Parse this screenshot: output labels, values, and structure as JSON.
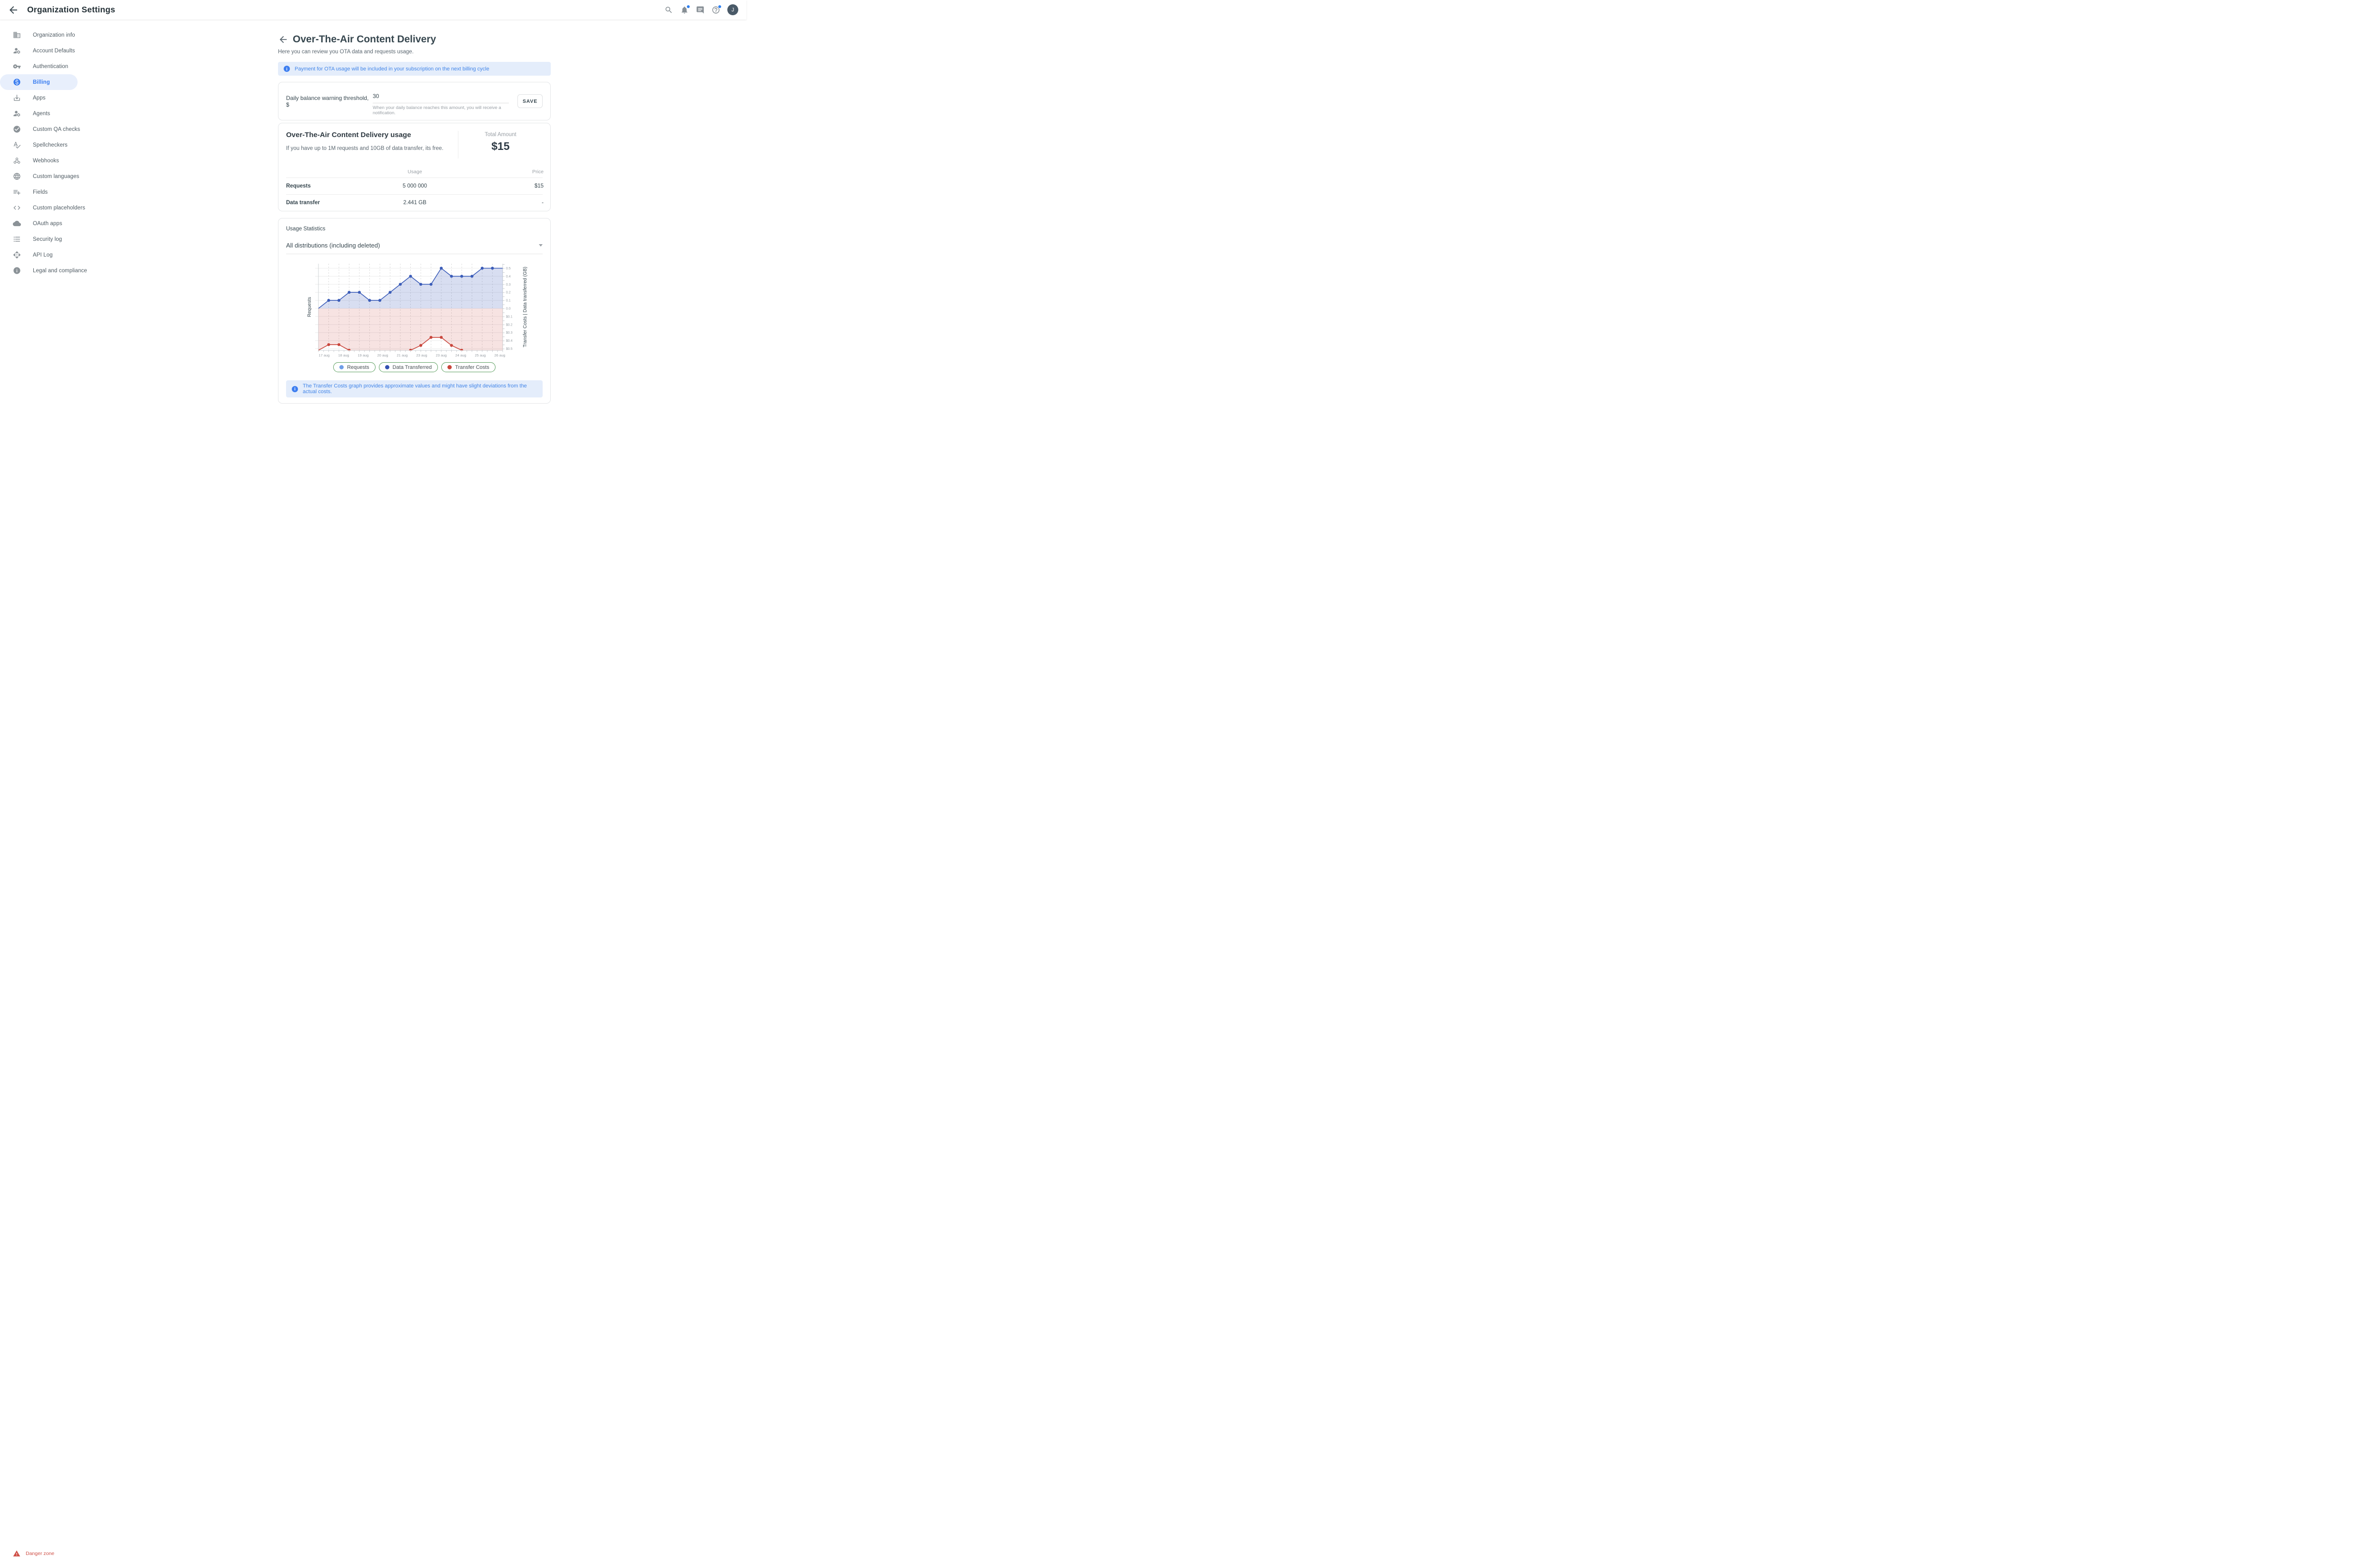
{
  "topbar": {
    "title": "Organization Settings",
    "avatar_initial": "J"
  },
  "sidebar": {
    "active_index": 3,
    "items": [
      {
        "label": "Organization info",
        "icon": "domain"
      },
      {
        "label": "Account Defaults",
        "icon": "manage-accounts"
      },
      {
        "label": "Authentication",
        "icon": "key"
      },
      {
        "label": "Billing",
        "icon": "monetization"
      },
      {
        "label": "Apps",
        "icon": "download"
      },
      {
        "label": "Agents",
        "icon": "manage-accounts"
      },
      {
        "label": "Custom QA checks",
        "icon": "check-circle"
      },
      {
        "label": "Spellcheckers",
        "icon": "spellcheck"
      },
      {
        "label": "Webhooks",
        "icon": "webhook"
      },
      {
        "label": "Custom languages",
        "icon": "globe"
      },
      {
        "label": "Fields",
        "icon": "playlist-add"
      },
      {
        "label": "Custom placeholders",
        "icon": "code"
      },
      {
        "label": "OAuth apps",
        "icon": "cloud"
      },
      {
        "label": "Security log",
        "icon": "list"
      },
      {
        "label": "API Log",
        "icon": "api"
      },
      {
        "label": "Legal and compliance",
        "icon": "info"
      }
    ],
    "danger_label": "Danger zone"
  },
  "page": {
    "title": "Over-The-Air Content Delivery",
    "subtitle": "Here you can review you OTA data and requests usage.",
    "banner": "Payment for OTA usage will be included in your subscription on the next billing cycle"
  },
  "threshold_card": {
    "label": "Daily balance warning threshold, $",
    "value": "30",
    "helper": "When your daily balance reaches this amount, you will receive a notification.",
    "save_label": "SAVE"
  },
  "usage_card": {
    "title": "Over-The-Air Content Delivery usage",
    "description": "If you have up to 1M requests and 10GB of data transfer, its free.",
    "total_label": "Total Amount",
    "total_value": "$15",
    "columns": {
      "usage": "Usage",
      "price": "Price"
    },
    "rows": [
      {
        "label": "Requests",
        "usage": "5 000 000",
        "price": "$15"
      },
      {
        "label": "Data transfer",
        "usage": "2.441 GB",
        "price": "-"
      }
    ]
  },
  "stats_card": {
    "title": "Usage Statistics",
    "select_value": "All distributions (including deleted)",
    "banner": "The Transfer Costs graph provides approximate values and might have slight deviations from the actual costs."
  },
  "chart_data": {
    "type": "area",
    "x_labels": [
      "17 aug",
      "18 aug",
      "19 aug",
      "20 aug",
      "21 aug",
      "23 aug",
      "23 aug",
      "24 aug",
      "25 aug",
      "26 aug"
    ],
    "left_axis_label": "Requests",
    "right_axis_label": "Transfer Costs | Data transferred (GB)",
    "right_axis_ticks": [
      "0.5",
      "0.4",
      "0.3",
      "0.2",
      "0.1",
      "0.0",
      "$0.1",
      "$0.2",
      "$0.3",
      "$0.4",
      "$0.5"
    ],
    "y_upper_max": 0.556,
    "y_lower_max": 0.52,
    "grid": true,
    "legend_position": "bottom",
    "series": [
      {
        "name": "Requests",
        "color": "#6f9ee8"
      },
      {
        "name": "Data Transferred",
        "color": "#3b5cb8",
        "axis": "up",
        "values": [
          0,
          0.1,
          0.1,
          0.2,
          0.2,
          0.1,
          0.1,
          0.2,
          0.3,
          0.4,
          0.3,
          0.3,
          0.5,
          0.4,
          0.4,
          0.4,
          0.5,
          0.5,
          0.5
        ]
      },
      {
        "name": "Transfer Costs",
        "color": "#c9463c",
        "axis": "down",
        "values": [
          0.52,
          0.45,
          0.45,
          0.52,
          0.57,
          0.57,
          0.57,
          0.57,
          0.57,
          0.52,
          0.46,
          0.36,
          0.36,
          0.46,
          0.52,
          0.57,
          0.57,
          0.57,
          0.57
        ]
      }
    ],
    "legend": [
      {
        "label": "Requests",
        "color": "#6f9ee8"
      },
      {
        "label": "Data Transferred",
        "color": "#3451b2"
      },
      {
        "label": "Transfer Costs",
        "color": "#c9463c"
      }
    ]
  }
}
